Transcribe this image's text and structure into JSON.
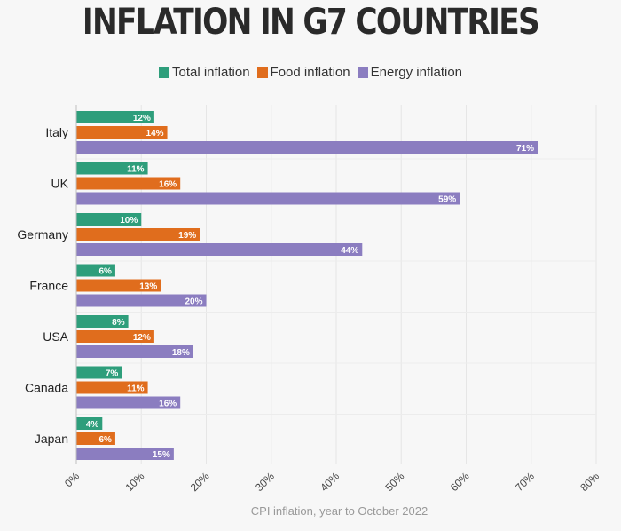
{
  "chart_data": {
    "type": "bar",
    "orientation": "horizontal",
    "title": "INFLATION IN G7 COUNTRIES",
    "xlabel": "CPI inflation, year to October 2022",
    "ylabel": "",
    "xlim": [
      0,
      80
    ],
    "x_ticks": [
      "0%",
      "10%",
      "20%",
      "30%",
      "40%",
      "50%",
      "60%",
      "70%",
      "80%"
    ],
    "grid": true,
    "legend_position": "top",
    "categories": [
      "Italy",
      "UK",
      "Germany",
      "France",
      "USA",
      "Canada",
      "Japan"
    ],
    "series": [
      {
        "name": "Total inflation",
        "color": "#2e9e7b",
        "values": [
          12,
          11,
          10,
          6,
          8,
          7,
          4
        ],
        "labels": [
          "12%",
          "11%",
          "10%",
          "6%",
          "8%",
          "7%",
          "4%"
        ]
      },
      {
        "name": "Food inflation",
        "color": "#e06d1d",
        "values": [
          14,
          16,
          19,
          13,
          12,
          11,
          6
        ],
        "labels": [
          "14%",
          "16%",
          "19%",
          "13%",
          "12%",
          "11%",
          "6%"
        ]
      },
      {
        "name": "Energy inflation",
        "color": "#8b7dc0",
        "values": [
          71,
          59,
          44,
          20,
          18,
          16,
          15
        ],
        "labels": [
          "71%",
          "59%",
          "44%",
          "20%",
          "18%",
          "16%",
          "15%"
        ]
      }
    ]
  }
}
